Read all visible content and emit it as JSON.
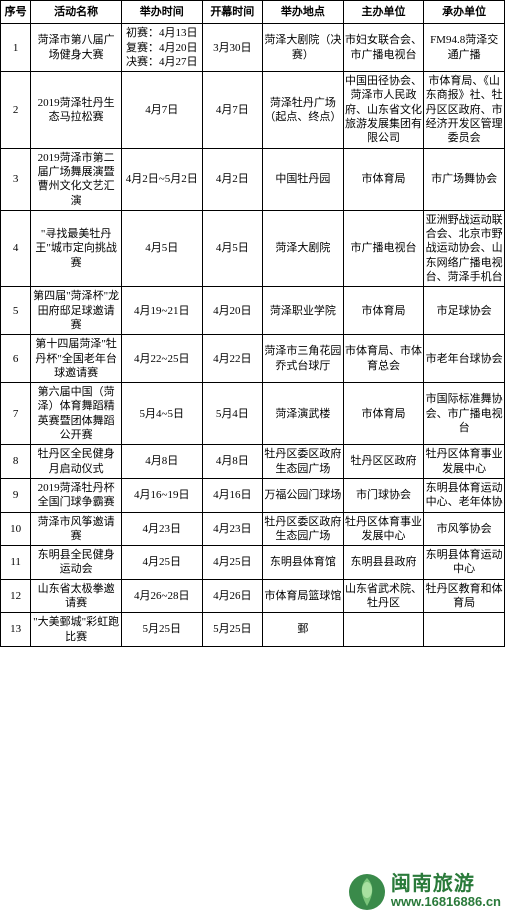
{
  "table": {
    "headers": [
      "序号",
      "活动名称",
      "举办时间",
      "开幕时间",
      "举办地点",
      "主办单位",
      "承办单位"
    ],
    "rows": [
      [
        "1",
        "菏泽市第八届广场健身大赛",
        "初赛：4月13日  复赛：4月20日  决赛：4月27日",
        "3月30日",
        "菏泽大剧院（决赛）",
        "市妇女联合会、市广播电视台",
        "FM94.8菏泽交通广播"
      ],
      [
        "2",
        "2019菏泽牡丹生态马拉松赛",
        "4月7日",
        "4月7日",
        "菏泽牡丹广场（起点、终点）",
        "中国田径协会、菏泽市人民政府、山东省文化旅游发展集团有限公司",
        "市体育局、《山东商报》社、牡丹区区政府、市经济开发区管理委员会"
      ],
      [
        "3",
        "2019菏泽市第二届广场舞展演暨曹州文化文艺汇演",
        "4月2日~5月2日",
        "4月2日",
        "中国牡丹园",
        "市体育局",
        "市广场舞协会"
      ],
      [
        "4",
        "\"寻找最美牡丹王\"城市定向挑战赛",
        "4月5日",
        "4月5日",
        "菏泽大剧院",
        "市广播电视台",
        "亚洲野战运动联合会、北京市野战运动协会、山东网络广播电视台、菏泽手机台"
      ],
      [
        "5",
        "第四届\"菏泽杯\"龙田府邸足球邀请赛",
        "4月19~21日",
        "4月20日",
        "菏泽职业学院",
        "市体育局",
        "市足球协会"
      ],
      [
        "6",
        "第十四届菏泽\"牡丹杯\"全国老年台球邀请赛",
        "4月22~25日",
        "4月22日",
        "菏泽市三角花园乔式台球厅",
        "市体育局、市体育总会",
        "市老年台球协会"
      ],
      [
        "7",
        "第六届中国（菏泽）体育舞蹈精英赛暨团体舞蹈公开赛",
        "5月4~5日",
        "5月4日",
        "菏泽演武楼",
        "市体育局",
        "市国际标准舞协会、市广播电视台"
      ],
      [
        "8",
        "牡丹区全民健身月启动仪式",
        "4月8日",
        "4月8日",
        "牡丹区委区政府生态园广场",
        "牡丹区区政府",
        "牡丹区体育事业发展中心"
      ],
      [
        "9",
        "2019菏泽牡丹杯全国门球争霸赛",
        "4月16~19日",
        "4月16日",
        "万福公园门球场",
        "市门球协会",
        "东明县体育运动中心、老年体协"
      ],
      [
        "10",
        "菏泽市风筝邀请赛",
        "4月23日",
        "4月23日",
        "牡丹区委区政府生态园广场",
        "牡丹区体育事业发展中心",
        "市风筝协会"
      ],
      [
        "11",
        "东明县全民健身运动会",
        "4月25日",
        "4月25日",
        "东明县体育馆",
        "东明县县政府",
        "东明县体育运动中心"
      ],
      [
        "12",
        "山东省太极拳邀请赛",
        "4月26~28日",
        "4月26日",
        "市体育局篮球馆",
        "山东省武术院、牡丹区",
        "牡丹区教育和体育局"
      ],
      [
        "13",
        "\"大美鄄城\"彩虹跑比赛",
        "5月25日",
        "5月25日",
        "鄄",
        "",
        "​"
      ]
    ]
  },
  "watermark": {
    "cn": "闽南旅游",
    "url": "www.16816886.cn"
  },
  "colors": {
    "border": "#000000",
    "wm_green": "#2a7a3a",
    "bg": "#ffffff"
  }
}
